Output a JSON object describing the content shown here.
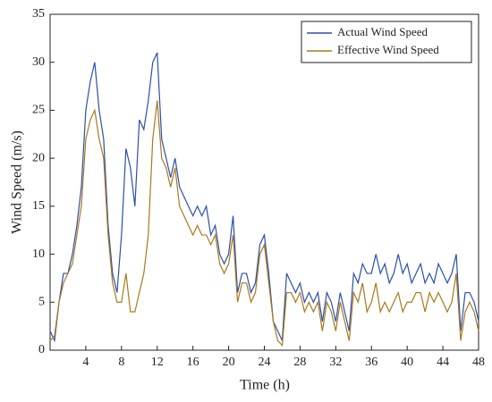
{
  "chart_data": {
    "type": "line",
    "xlabel": "Time (h)",
    "ylabel": "Wind Speed (m/s)",
    "x": [
      0,
      0.5,
      1,
      1.5,
      2,
      2.5,
      3,
      3.5,
      4,
      4.5,
      5,
      5.5,
      6,
      6.5,
      7,
      7.5,
      8,
      8.5,
      9,
      9.5,
      10,
      10.5,
      11,
      11.5,
      12,
      12.5,
      13,
      13.5,
      14,
      14.5,
      15,
      15.5,
      16,
      16.5,
      17,
      17.5,
      18,
      18.5,
      19,
      19.5,
      20,
      20.5,
      21,
      21.5,
      22,
      22.5,
      23,
      23.5,
      24,
      24.5,
      25,
      25.5,
      26,
      26.5,
      27,
      27.5,
      28,
      28.5,
      29,
      29.5,
      30,
      30.5,
      31,
      31.5,
      32,
      32.5,
      33,
      33.5,
      34,
      34.5,
      35,
      35.5,
      36,
      36.5,
      37,
      37.5,
      38,
      38.5,
      39,
      39.5,
      40,
      40.5,
      41,
      41.5,
      42,
      42.5,
      43,
      43.5,
      44,
      44.5,
      45,
      45.5,
      46,
      46.5,
      47,
      47.5,
      48
    ],
    "series": [
      {
        "name": "Actual Wind Speed",
        "color": "#2b4faa",
        "values": [
          2,
          1,
          5,
          8,
          8,
          10,
          13,
          17,
          25,
          28,
          30,
          25,
          22,
          13,
          8,
          6,
          12,
          21,
          19,
          15,
          24,
          23,
          26,
          30,
          31,
          22,
          20,
          18,
          20,
          17,
          16,
          15,
          14,
          15,
          14,
          15,
          12,
          13,
          10,
          9,
          10,
          14,
          6,
          8,
          8,
          6,
          7,
          11,
          12,
          8,
          3,
          2,
          1,
          8,
          7,
          6,
          7,
          5,
          6,
          5,
          6,
          3,
          6,
          5,
          3,
          6,
          4,
          2,
          8,
          7,
          9,
          8,
          8,
          10,
          8,
          9,
          7,
          8,
          10,
          8,
          9,
          7,
          8,
          9,
          7,
          8,
          7,
          9,
          8,
          7,
          8,
          10,
          2,
          6,
          6,
          5,
          3
        ]
      },
      {
        "name": "Effective Wind Speed",
        "color": "#a8791c",
        "values": [
          1,
          1.5,
          5,
          7,
          8,
          9,
          12,
          15,
          22,
          24,
          25,
          22,
          20,
          12,
          7,
          5,
          5,
          8,
          4,
          4,
          6,
          8,
          12,
          22,
          26,
          20,
          19,
          17,
          19,
          15,
          14,
          13,
          12,
          13,
          12,
          12,
          11,
          12,
          9,
          8,
          9,
          12,
          5,
          7,
          7,
          5,
          6,
          10,
          11,
          7,
          3,
          1,
          0.5,
          6,
          6,
          5,
          6,
          4,
          5,
          4,
          5,
          2,
          5,
          4,
          2,
          5,
          3,
          1,
          6,
          5,
          7,
          4,
          5,
          7,
          4,
          5,
          4,
          5,
          6,
          4,
          5,
          5,
          6,
          6,
          4,
          6,
          5,
          6,
          5,
          4,
          5,
          8,
          1,
          4,
          5,
          4,
          2
        ]
      }
    ],
    "xlim": [
      0,
      48
    ],
    "xticks": [
      4,
      8,
      12,
      16,
      20,
      24,
      28,
      32,
      36,
      40,
      44,
      48
    ],
    "ylim": [
      0,
      35
    ],
    "yticks": [
      0,
      5,
      10,
      15,
      20,
      25,
      30,
      35
    ],
    "legend": "upper right"
  }
}
